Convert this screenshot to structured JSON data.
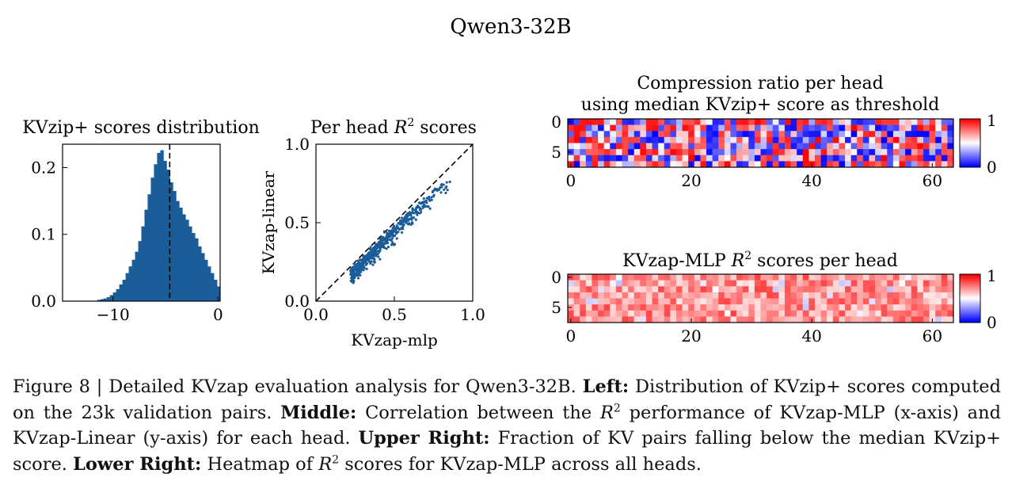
{
  "figure": {
    "suptitle": "Qwen3-32B"
  },
  "chart_data": [
    {
      "type": "bar",
      "id": "hist",
      "title": "KVzip+ scores distribution",
      "xlabel": "",
      "ylabel": "",
      "xlim": [
        -14.8,
        0.2
      ],
      "ylim": [
        0,
        0.235
      ],
      "xticks": [
        -10,
        0
      ],
      "xtick_labels": [
        "−10",
        "0"
      ],
      "yticks": [
        0,
        0.1,
        0.2
      ],
      "ytick_labels": [
        "0.0",
        "0.1",
        "0.2"
      ],
      "color": "#1a5d99",
      "bin_edges_start": -11.5,
      "bin_width": 0.3,
      "values": [
        0.002,
        0.003,
        0.004,
        0.006,
        0.009,
        0.013,
        0.018,
        0.025,
        0.032,
        0.042,
        0.052,
        0.062,
        0.074,
        0.09,
        0.112,
        0.137,
        0.16,
        0.185,
        0.205,
        0.222,
        0.226,
        0.21,
        0.197,
        0.178,
        0.165,
        0.15,
        0.14,
        0.13,
        0.122,
        0.112,
        0.102,
        0.094,
        0.082,
        0.072,
        0.062,
        0.052,
        0.042,
        0.032,
        0.022
      ],
      "median_line": -4.6,
      "median_style": "dashed black"
    },
    {
      "type": "scatter",
      "id": "scatter",
      "title": "Per head",
      "title_math": "R",
      "title_sup": "2",
      "title_suffix": "scores",
      "xlabel": "KVzap-mlp",
      "ylabel": "KVzap-linear",
      "xlim": [
        0,
        1
      ],
      "ylim": [
        0,
        1
      ],
      "xticks": [
        0,
        0.5,
        1.0
      ],
      "xtick_labels": [
        "0.0",
        "0.5",
        "1.0"
      ],
      "yticks": [
        0,
        0.5,
        1.0
      ],
      "ytick_labels": [
        "0.0",
        "0.5",
        "1.0"
      ],
      "color": "#1a5d99",
      "n_points": 512,
      "x_range": [
        0.22,
        0.86
      ],
      "trend": "points below the y=x reference line, slope ~1",
      "reference_line": "y = x (dashed black)"
    },
    {
      "type": "heatmap",
      "id": "heat1",
      "title_line1": "Compression ratio per head",
      "title_line2": "using median KVzip+ score as threshold",
      "rows": 8,
      "cols": 64,
      "xticks": [
        0,
        20,
        40,
        60
      ],
      "yticks": [
        0,
        5
      ],
      "colorbar_ticks": [
        "0",
        "1"
      ],
      "colormap": "bwr",
      "vmin": 0,
      "vmax": 1,
      "values_desc": "mixed values spanning full 0-1 range per layer/head"
    },
    {
      "type": "heatmap",
      "id": "heat2",
      "title": "KVzap-MLP",
      "title_math": "R",
      "title_sup": "2",
      "title_suffix": "scores per head",
      "rows": 8,
      "cols": 64,
      "xticks": [
        0,
        20,
        40,
        60
      ],
      "yticks": [
        0,
        5
      ],
      "colorbar_ticks": [
        "0",
        "1"
      ],
      "colormap": "bwr",
      "vmin": 0,
      "vmax": 1,
      "values_desc": "mostly 0.55-0.9 (light to medium red), few near 0.5"
    }
  ],
  "caption": {
    "figure_label": "Figure 8 | Detailed KVzap evaluation analysis for Qwen3-32B.",
    "left_label": "Left:",
    "left_text": "Distribution of KVzip+ scores computed on the 23k validation pairs.",
    "middle_label": "Middle:",
    "middle_text_1": "Correlation between the",
    "middle_text_2": "performance of KVzap-MLP (x-axis) and KVzap-Linear (y-axis) for each head.",
    "upper_right_label": "Upper Right:",
    "upper_right_text": "Fraction of KV pairs falling below the median KVzip+ score.",
    "lower_right_label": "Lower Right:",
    "lower_right_text_1": "Heatmap of",
    "lower_right_text_2": "scores for KVzap-MLP across all heads.",
    "math_R": "R",
    "math_sup": "2"
  }
}
